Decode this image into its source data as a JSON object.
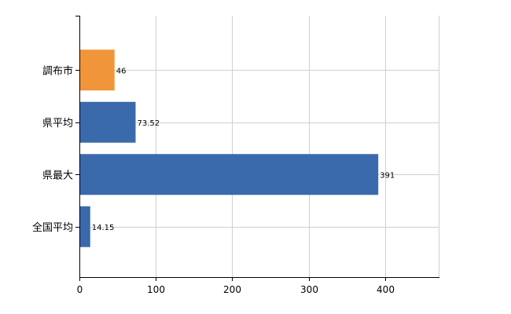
{
  "chart_data": {
    "type": "bar",
    "orientation": "horizontal",
    "categories": [
      "調布市",
      "県平均",
      "県最大",
      "全国平均"
    ],
    "values": [
      46,
      73.52,
      391,
      14.15
    ],
    "value_labels": [
      "46",
      "73.52",
      "391",
      "14.15"
    ],
    "bar_colors": [
      "#f0953a",
      "#3a6aab",
      "#3a6aab",
      "#3a6aab"
    ],
    "xlim": [
      0,
      470
    ],
    "x_ticks": [
      0,
      100,
      200,
      300,
      400
    ],
    "x_tick_labels": [
      "0",
      "100",
      "200",
      "300",
      "400"
    ],
    "grid": true,
    "grid_color": "#d0d0d0",
    "title": "",
    "xlabel": "",
    "ylabel": ""
  }
}
